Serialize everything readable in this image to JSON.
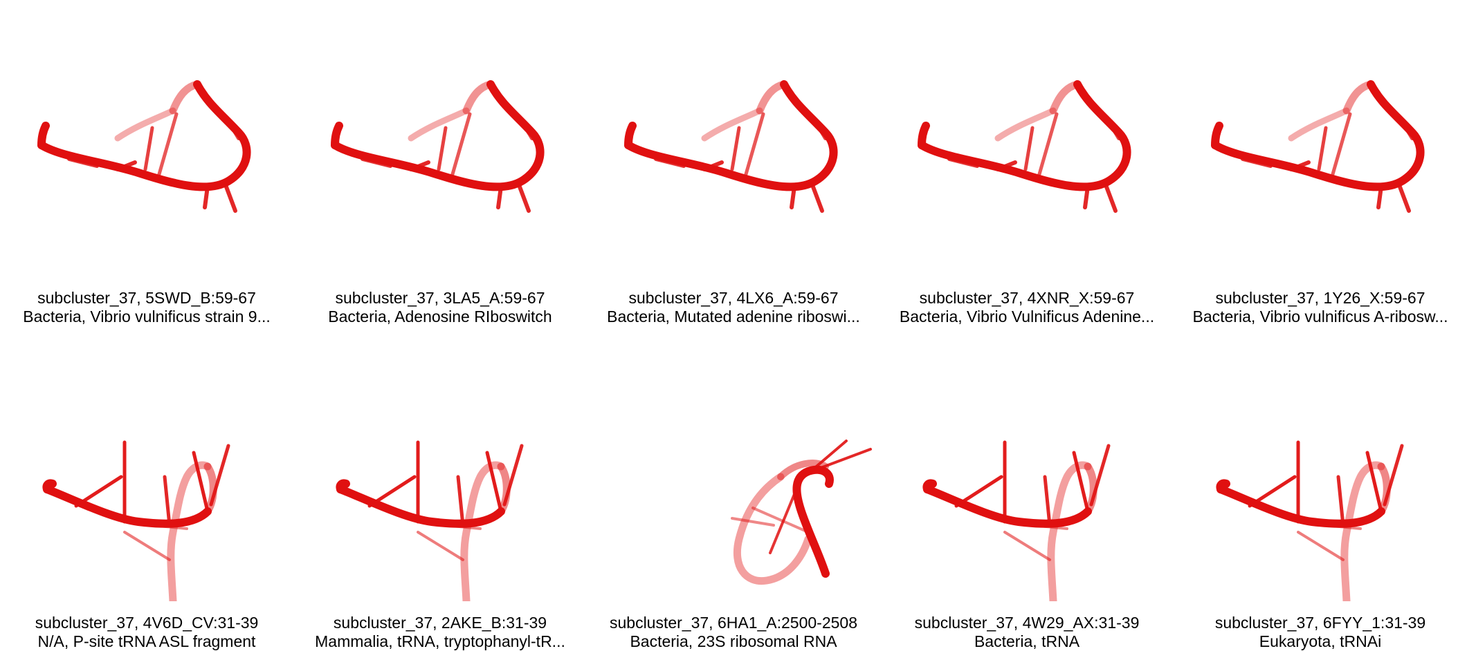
{
  "structure_color": "#e01010",
  "panels": [
    {
      "title": "subcluster_37, 5SWD_B:59-67",
      "subtitle": "Bacteria, Vibrio vulnificus strain 9...",
      "shape": "loop-a"
    },
    {
      "title": "subcluster_37, 3LA5_A:59-67",
      "subtitle": "Bacteria, Adenosine RIboswitch",
      "shape": "loop-a"
    },
    {
      "title": "subcluster_37, 4LX6_A:59-67",
      "subtitle": "Bacteria, Mutated adenine riboswi...",
      "shape": "loop-a"
    },
    {
      "title": "subcluster_37, 4XNR_X:59-67",
      "subtitle": "Bacteria, Vibrio Vulnificus Adenine...",
      "shape": "loop-a"
    },
    {
      "title": "subcluster_37, 1Y26_X:59-67",
      "subtitle": "Bacteria, Vibrio vulnificus A-ribosw...",
      "shape": "loop-a"
    },
    {
      "title": "subcluster_37, 4V6D_CV:31-39",
      "subtitle": "N/A, P-site tRNA ASL fragment",
      "shape": "loop-b"
    },
    {
      "title": "subcluster_37, 2AKE_B:31-39",
      "subtitle": "Mammalia, tRNA, tryptophanyl-tR...",
      "shape": "loop-b"
    },
    {
      "title": "subcluster_37, 6HA1_A:2500-2508",
      "subtitle": "Bacteria, 23S ribosomal RNA",
      "shape": "loop-c"
    },
    {
      "title": "subcluster_37, 4W29_AX:31-39",
      "subtitle": "Bacteria, tRNA",
      "shape": "loop-b"
    },
    {
      "title": "subcluster_37, 6FYY_1:31-39",
      "subtitle": "Eukaryota, tRNAi",
      "shape": "loop-b"
    }
  ]
}
